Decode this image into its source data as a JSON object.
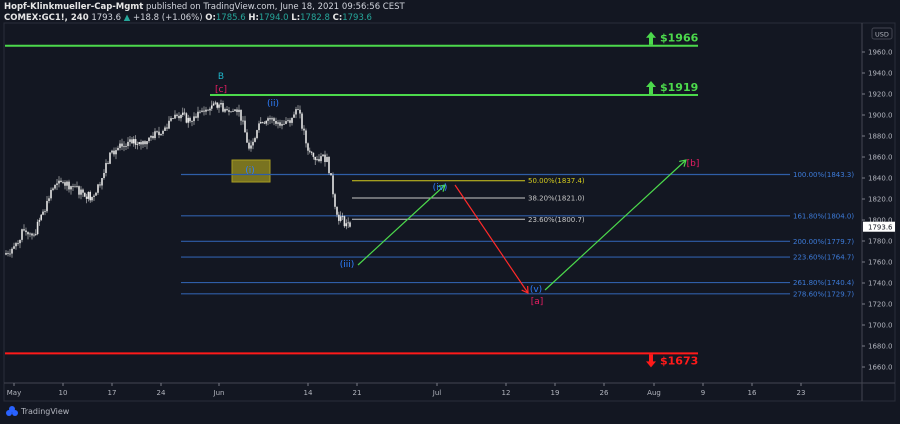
{
  "header": {
    "publisher": "Hopf-Klinkmueller-Cap-Mgmt",
    "published_text": "published on TradingView.com, June 18, 2021 09:56:56 CEST",
    "symbol": "COMEX:GC1!, 240",
    "last": "1793.6",
    "change": "+18.8 (+1.06%)",
    "o_label": "O:",
    "o": "1785.6",
    "h_label": "H:",
    "h": "1794.0",
    "l_label": "L:",
    "l": "1782.8",
    "c_label": "C:",
    "c": "1793.6"
  },
  "branding": {
    "logo_text": "TradingView"
  },
  "colors": {
    "background": "#131722",
    "green": "#4cd94c",
    "red": "#ff1a1a",
    "fib_blue": "#2f5ea8",
    "fib_label_blue": "#3d7bd9",
    "wave_pink": "#e91e63",
    "wave_blue": "#2f7fff",
    "yellow": "#b8b21e",
    "candle": "#e6e6e6"
  },
  "chart_data": {
    "type": "candlestick",
    "symbol": "COMEX:GC1!",
    "timeframe": "240",
    "currency": "USD",
    "ylim": [
      1650,
      1985
    ],
    "y_ticks": [
      "1960.0",
      "1940.0",
      "1920.0",
      "1900.0",
      "1880.0",
      "1860.0",
      "1840.0",
      "1820.0",
      "1800.0",
      "1780.0",
      "1760.0",
      "1740.0",
      "1720.0",
      "1700.0",
      "1680.0",
      "1660.0"
    ],
    "x_ticks": [
      "May",
      "10",
      "17",
      "24",
      "Jun",
      "14",
      "21",
      "Jul",
      "12",
      "19",
      "26",
      "Aug",
      "9",
      "16",
      "23"
    ],
    "last_price_label": "1793.6",
    "price_path": [
      [
        "2021-04-30",
        1767
      ],
      [
        "2021-05-03",
        1775
      ],
      [
        "2021-05-04",
        1790
      ],
      [
        "2021-05-05",
        1786
      ],
      [
        "2021-05-06",
        1808
      ],
      [
        "2021-05-07",
        1830
      ],
      [
        "2021-05-10",
        1836
      ],
      [
        "2021-05-11",
        1832
      ],
      [
        "2021-05-12",
        1826
      ],
      [
        "2021-05-13",
        1822
      ],
      [
        "2021-05-14",
        1840
      ],
      [
        "2021-05-17",
        1866
      ],
      [
        "2021-05-18",
        1870
      ],
      [
        "2021-05-19",
        1873
      ],
      [
        "2021-05-20",
        1872
      ],
      [
        "2021-05-21",
        1880
      ],
      [
        "2021-05-24",
        1882
      ],
      [
        "2021-05-25",
        1897
      ],
      [
        "2021-05-26",
        1900
      ],
      [
        "2021-05-27",
        1894
      ],
      [
        "2021-05-28",
        1903
      ],
      [
        "2021-05-31",
        1906
      ],
      [
        "2021-06-01",
        1910
      ],
      [
        "2021-06-02",
        1903
      ],
      [
        "2021-06-03",
        1905
      ],
      [
        "2021-06-04",
        1868
      ],
      [
        "2021-06-07",
        1892
      ],
      [
        "2021-06-08",
        1897
      ],
      [
        "2021-06-09",
        1893
      ],
      [
        "2021-06-10",
        1895
      ],
      [
        "2021-06-11",
        1905
      ],
      [
        "2021-06-14",
        1866
      ],
      [
        "2021-06-15",
        1858
      ],
      [
        "2021-06-16",
        1860
      ],
      [
        "2021-06-17",
        1805
      ],
      [
        "2021-06-18",
        1793.6
      ]
    ],
    "levels": [
      {
        "label": "$1966",
        "price": 1966,
        "color": "#4cd94c",
        "direction": "up"
      },
      {
        "label": "$1919",
        "price": 1919,
        "color": "#4cd94c",
        "direction": "up"
      },
      {
        "label": "$1673",
        "price": 1673,
        "color": "#ff1a1a",
        "direction": "down"
      }
    ],
    "fib_extension": [
      {
        "label": "100.00%(1843.3)",
        "price": 1843.3
      },
      {
        "label": "161.80%(1804.0)",
        "price": 1804.0
      },
      {
        "label": "200.00%(1779.7)",
        "price": 1779.7
      },
      {
        "label": "223.60%(1764.7)",
        "price": 1764.7
      },
      {
        "label": "261.80%(1740.4)",
        "price": 1740.4
      },
      {
        "label": "278.60%(1729.7)",
        "price": 1729.7
      }
    ],
    "fib_retracement": [
      {
        "label": "50.00%(1837.4)",
        "price": 1837.4,
        "color": "#d4cc1e"
      },
      {
        "label": "38.20%(1821.0)",
        "price": 1821.0,
        "color": "#c8c8c8"
      },
      {
        "label": "23.60%(1800.7)",
        "price": 1800.7,
        "color": "#c8c8c8"
      }
    ],
    "wave_labels": [
      {
        "text": "B",
        "color": "#1fb5c9"
      },
      {
        "text": "[c]",
        "color": "#e91e63"
      },
      {
        "text": "(i)",
        "color": "#2f7fff"
      },
      {
        "text": "(ii)",
        "color": "#2f7fff"
      },
      {
        "text": "(iii)",
        "color": "#2f7fff"
      },
      {
        "text": "(iv)",
        "color": "#2f7fff"
      },
      {
        "text": "(v)",
        "color": "#2f7fff"
      },
      {
        "text": "[a]",
        "color": "#e91e63"
      },
      {
        "text": "[b]",
        "color": "#e91e63"
      }
    ]
  }
}
